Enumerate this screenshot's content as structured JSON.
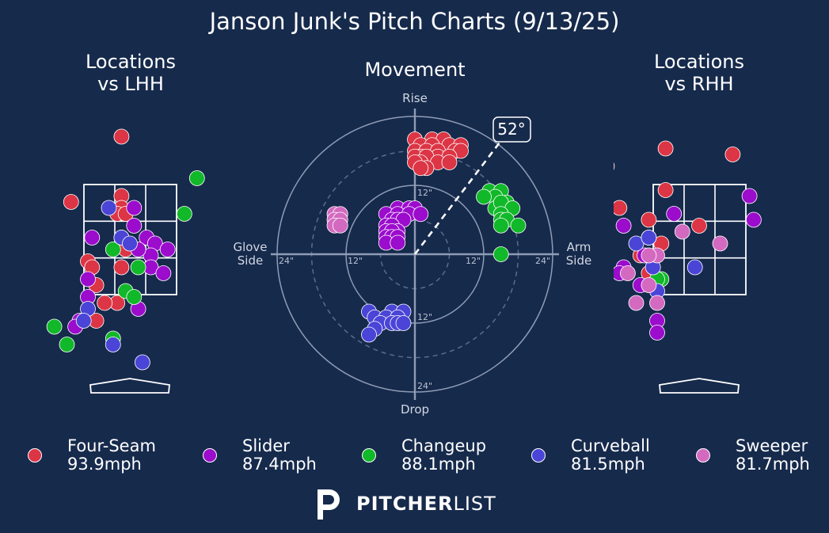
{
  "title": "Janson Junk's Pitch Charts (9/13/25)",
  "panels": {
    "lhh": [
      "Locations",
      "vs LHH"
    ],
    "movement": "Movement",
    "rhh": [
      "Locations",
      "vs RHH"
    ]
  },
  "movement_labels": {
    "top": "Rise",
    "bottom": "Drop",
    "left": [
      "Glove",
      "Side"
    ],
    "right": [
      "Arm",
      "Side"
    ],
    "angle": "52°",
    "ring_labels": [
      "12\"",
      "24\""
    ]
  },
  "legend": [
    {
      "name": "Four-Seam",
      "speed": "93.9mph",
      "color": "#dc3545"
    },
    {
      "name": "Slider",
      "speed": "87.4mph",
      "color": "#9b0ccc"
    },
    {
      "name": "Changeup",
      "speed": "88.1mph",
      "color": "#11b829"
    },
    {
      "name": "Curveball",
      "speed": "81.5mph",
      "color": "#4a45d6"
    },
    {
      "name": "Sweeper",
      "speed": "81.7mph",
      "color": "#d36ac0"
    }
  ],
  "brand": {
    "bold": "PITCHER",
    "light": "LIST"
  },
  "chart_data": [
    {
      "type": "scatter",
      "title": "Locations vs LHH",
      "xlim": [
        -2.5,
        2.5
      ],
      "ylim": [
        0.2,
        4.4
      ],
      "series": [
        {
          "name": "Four-Seam",
          "points": [
            [
              -0.2,
              4.1
            ],
            [
              -1.4,
              3.0
            ],
            [
              -0.2,
              3.1
            ],
            [
              -0.2,
              2.9
            ],
            [
              -0.3,
              2.8
            ],
            [
              -0.1,
              2.8
            ],
            [
              -0.2,
              2.4
            ],
            [
              -0.1,
              2.2
            ],
            [
              -1.0,
              2.0
            ],
            [
              -0.2,
              1.9
            ],
            [
              -0.9,
              1.9
            ],
            [
              -0.8,
              1.6
            ],
            [
              -0.3,
              1.3
            ],
            [
              -0.6,
              1.3
            ],
            [
              -0.8,
              1.0
            ]
          ]
        },
        {
          "name": "Slider",
          "points": [
            [
              0.1,
              2.9
            ],
            [
              0.1,
              2.6
            ],
            [
              -0.9,
              2.4
            ],
            [
              0.4,
              2.4
            ],
            [
              0.6,
              2.3
            ],
            [
              0.9,
              2.2
            ],
            [
              0.5,
              2.1
            ],
            [
              0.2,
              2.2
            ],
            [
              0.5,
              1.9
            ],
            [
              0.8,
              1.8
            ],
            [
              0.2,
              1.2
            ],
            [
              -1.0,
              1.7
            ],
            [
              -1.2,
              1.0
            ],
            [
              -1.0,
              1.4
            ],
            [
              -1.3,
              0.9
            ]
          ]
        },
        {
          "name": "Changeup",
          "points": [
            [
              1.6,
              3.4
            ],
            [
              1.3,
              2.8
            ],
            [
              -0.4,
              2.2
            ],
            [
              0.2,
              1.9
            ],
            [
              -0.1,
              1.5
            ],
            [
              0.1,
              1.4
            ],
            [
              -1.8,
              0.9
            ],
            [
              -1.5,
              0.6
            ],
            [
              -0.4,
              0.7
            ],
            [
              -2.3,
              0.9
            ]
          ]
        },
        {
          "name": "Curveball",
          "points": [
            [
              -0.5,
              2.9
            ],
            [
              -0.2,
              2.4
            ],
            [
              0.0,
              2.3
            ],
            [
              -1.0,
              1.2
            ],
            [
              -1.1,
              1.0
            ],
            [
              0.3,
              0.3
            ],
            [
              -0.4,
              0.6
            ]
          ]
        }
      ]
    },
    {
      "type": "scatter",
      "title": "Movement",
      "x_unit": "inches",
      "y_unit": "inches",
      "rings": [
        6,
        12,
        18,
        24
      ],
      "arm_angle_deg": 52,
      "series": [
        {
          "name": "Four-Seam",
          "points": [
            [
              0,
              20
            ],
            [
              3,
              20
            ],
            [
              5,
              20
            ],
            [
              1,
              19
            ],
            [
              3,
              19
            ],
            [
              6,
              19
            ],
            [
              8,
              19
            ],
            [
              0,
              18
            ],
            [
              2,
              18
            ],
            [
              4,
              18
            ],
            [
              7,
              18
            ],
            [
              8,
              18
            ],
            [
              1,
              17
            ],
            [
              4,
              17
            ],
            [
              6,
              17
            ],
            [
              0,
              17
            ],
            [
              2,
              17
            ],
            [
              1,
              16
            ],
            [
              4,
              16
            ],
            [
              6,
              16
            ],
            [
              0,
              16
            ],
            [
              2,
              15
            ],
            [
              1,
              15
            ]
          ]
        },
        {
          "name": "Slider",
          "points": [
            [
              -3,
              8
            ],
            [
              -1,
              8
            ],
            [
              0,
              8
            ],
            [
              -5,
              7
            ],
            [
              -3,
              7
            ],
            [
              -1,
              7
            ],
            [
              1,
              7
            ],
            [
              -4,
              6
            ],
            [
              -3,
              6
            ],
            [
              -2,
              6
            ],
            [
              -5,
              5
            ],
            [
              -4,
              5
            ],
            [
              -5,
              4
            ],
            [
              -3,
              4
            ],
            [
              -4,
              4
            ],
            [
              -5,
              3
            ],
            [
              -4,
              3
            ],
            [
              -3,
              3
            ],
            [
              -5,
              2
            ],
            [
              -3,
              2
            ]
          ]
        },
        {
          "name": "Changeup",
          "points": [
            [
              13,
              11
            ],
            [
              15,
              11
            ],
            [
              14,
              10
            ],
            [
              12,
              10
            ],
            [
              16,
              9
            ],
            [
              14,
              8
            ],
            [
              15,
              9
            ],
            [
              17,
              8
            ],
            [
              15,
              7
            ],
            [
              15,
              6
            ],
            [
              16,
              6
            ],
            [
              15,
              5
            ],
            [
              18,
              5
            ],
            [
              15,
              0
            ]
          ]
        },
        {
          "name": "Curveball",
          "points": [
            [
              -8,
              -10
            ],
            [
              -4,
              -10
            ],
            [
              -2,
              -10
            ],
            [
              -7,
              -11
            ],
            [
              -5,
              -11
            ],
            [
              -3,
              -11
            ],
            [
              -6,
              -12
            ],
            [
              -4,
              -12
            ],
            [
              -3,
              -12
            ],
            [
              -2,
              -12
            ],
            [
              -7,
              -13
            ],
            [
              -8,
              -14
            ]
          ]
        },
        {
          "name": "Sweeper",
          "points": [
            [
              -14,
              7
            ],
            [
              -13,
              7
            ],
            [
              -14,
              6
            ],
            [
              -13,
              6
            ],
            [
              -14,
              5
            ],
            [
              -13,
              5
            ]
          ]
        }
      ]
    },
    {
      "type": "scatter",
      "title": "Locations vs RHH",
      "xlim": [
        -2.5,
        2.5
      ],
      "ylim": [
        0.2,
        4.4
      ],
      "series": [
        {
          "name": "Four-Seam",
          "points": [
            [
              -2.5,
              4.0
            ],
            [
              -0.8,
              3.9
            ],
            [
              0.8,
              3.8
            ],
            [
              -2.2,
              3.6
            ],
            [
              -0.8,
              3.2
            ],
            [
              -1.9,
              2.9
            ],
            [
              -1.2,
              2.7
            ],
            [
              -2.5,
              2.7
            ],
            [
              -2.3,
              2.6
            ],
            [
              0.0,
              2.6
            ],
            [
              -0.9,
              2.3
            ],
            [
              -1.2,
              1.8
            ],
            [
              -1.4,
              2.1
            ]
          ]
        },
        {
          "name": "Slider",
          "points": [
            [
              1.2,
              3.1
            ],
            [
              1.3,
              2.7
            ],
            [
              -0.6,
              2.8
            ],
            [
              -1.8,
              2.6
            ],
            [
              -1.2,
              2.4
            ],
            [
              -1.3,
              2.1
            ],
            [
              -1.8,
              1.9
            ],
            [
              -1.9,
              1.8
            ],
            [
              -1.4,
              1.6
            ],
            [
              -2.5,
              1.5
            ],
            [
              -1.0,
              1.0
            ],
            [
              -1.0,
              0.8
            ]
          ]
        },
        {
          "name": "Changeup",
          "points": [
            [
              -0.9,
              1.7
            ],
            [
              -1.0,
              1.7
            ]
          ]
        },
        {
          "name": "Curveball",
          "points": [
            [
              -1.5,
              2.3
            ],
            [
              -1.2,
              2.4
            ],
            [
              -1.1,
              1.9
            ],
            [
              -0.1,
              1.9
            ],
            [
              -1.0,
              1.5
            ]
          ]
        },
        {
          "name": "Sweeper",
          "points": [
            [
              -0.4,
              2.5
            ],
            [
              0.5,
              2.3
            ],
            [
              -1.0,
              2.1
            ],
            [
              -1.2,
              2.1
            ],
            [
              -1.7,
              1.8
            ],
            [
              -1.2,
              1.6
            ],
            [
              -1.0,
              1.3
            ],
            [
              -1.5,
              1.3
            ]
          ]
        }
      ]
    }
  ]
}
